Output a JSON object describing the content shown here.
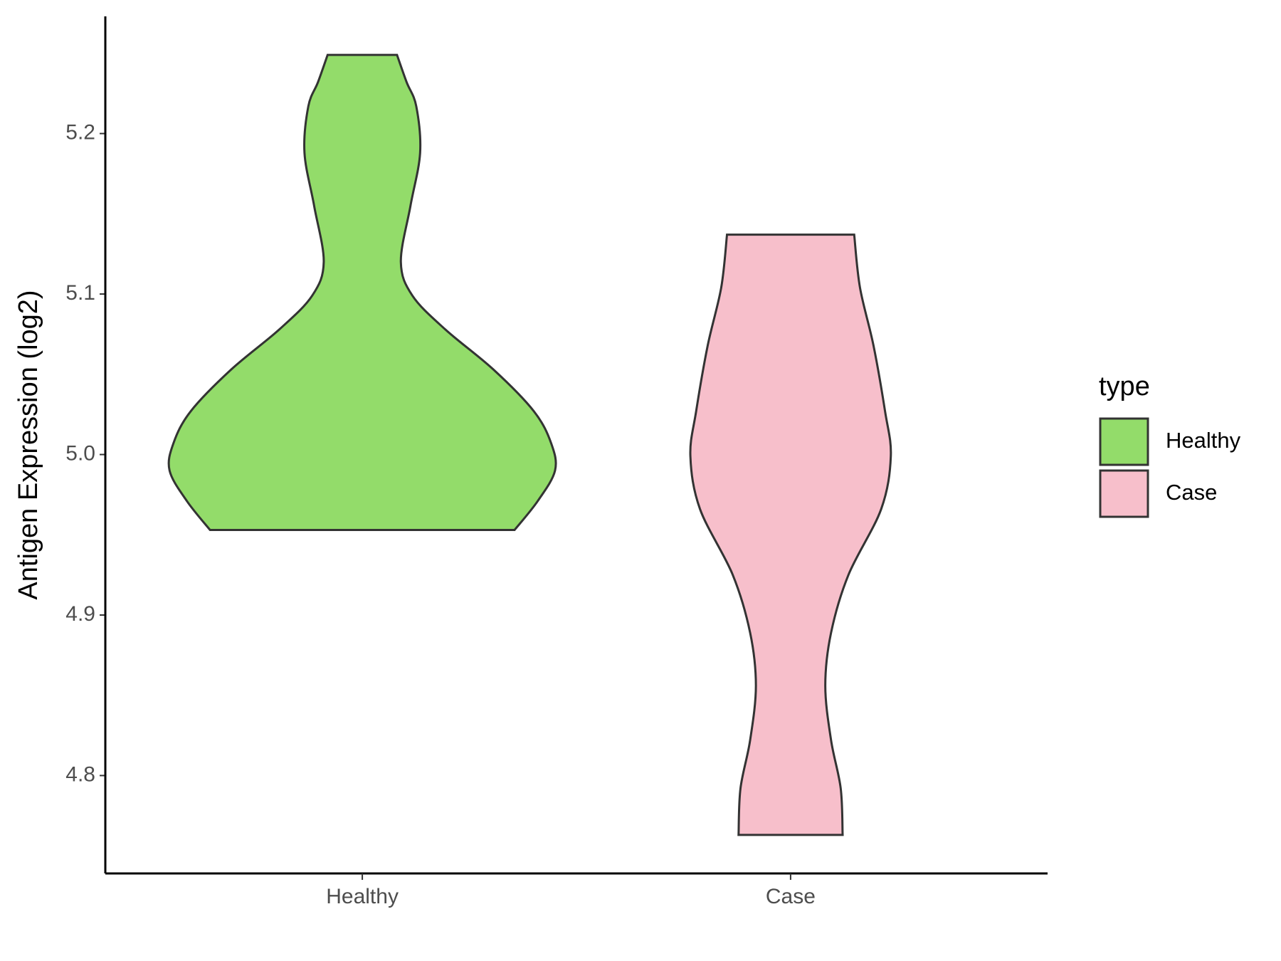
{
  "chart_data": {
    "type": "violin",
    "y_label": "Antigen Expression (log2)",
    "categories": [
      "Healthy",
      "Case"
    ],
    "legend_title": "type",
    "legend": "right",
    "ylim": [
      4.739,
      5.273
    ],
    "yticks": [
      4.8,
      4.9,
      {
        "value": 5,
        "label": "5.0"
      },
      5.1,
      5.2
    ],
    "series": [
      {
        "name": "Healthy",
        "color": "#93dc6a",
        "y": [
          5.249,
          5.232,
          5.217,
          5.188,
          5.155,
          5.12,
          5.099,
          5.078,
          5.053,
          5.027,
          5.007,
          4.99,
          4.971,
          4.953
        ],
        "density": [
          0.18,
          0.23,
          0.28,
          0.3,
          0.25,
          0.2,
          0.26,
          0.43,
          0.68,
          0.89,
          0.98,
          1.0,
          0.91,
          0.79
        ]
      },
      {
        "name": "Case",
        "color": "#f7bfcb",
        "y": [
          5.137,
          5.104,
          5.068,
          5.027,
          4.999,
          4.966,
          4.925,
          4.889,
          4.856,
          4.822,
          4.792,
          4.763
        ],
        "density": [
          0.33,
          0.36,
          0.43,
          0.49,
          0.52,
          0.47,
          0.3,
          0.21,
          0.18,
          0.21,
          0.26,
          0.27
        ]
      }
    ]
  }
}
